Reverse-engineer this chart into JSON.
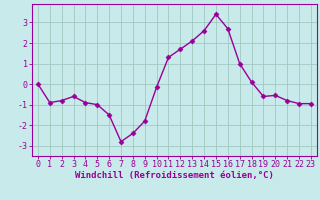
{
  "x": [
    0,
    1,
    2,
    3,
    4,
    5,
    6,
    7,
    8,
    9,
    10,
    11,
    12,
    13,
    14,
    15,
    16,
    17,
    18,
    19,
    20,
    21,
    22,
    23
  ],
  "y": [
    0.0,
    -0.9,
    -0.8,
    -0.6,
    -0.9,
    -1.0,
    -1.5,
    -2.8,
    -2.4,
    -1.8,
    -0.15,
    1.3,
    1.7,
    2.1,
    2.6,
    3.4,
    2.7,
    1.0,
    0.1,
    -0.6,
    -0.55,
    -0.8,
    -0.95,
    -0.95
  ],
  "line_color": "#990099",
  "marker": "D",
  "marker_size": 2.5,
  "bg_color": "#c8eaea",
  "grid_color": "#a0c8c0",
  "xlabel": "Windchill (Refroidissement éolien,°C)",
  "ylabel": "",
  "ylim": [
    -3.5,
    3.9
  ],
  "xlim": [
    -0.5,
    23.5
  ],
  "yticks": [
    -3,
    -2,
    -1,
    0,
    1,
    2,
    3
  ],
  "xticks": [
    0,
    1,
    2,
    3,
    4,
    5,
    6,
    7,
    8,
    9,
    10,
    11,
    12,
    13,
    14,
    15,
    16,
    17,
    18,
    19,
    20,
    21,
    22,
    23
  ],
  "tick_color": "#990099",
  "xlabel_fontsize": 6.5,
  "tick_fontsize": 6.0,
  "linewidth": 1.0
}
